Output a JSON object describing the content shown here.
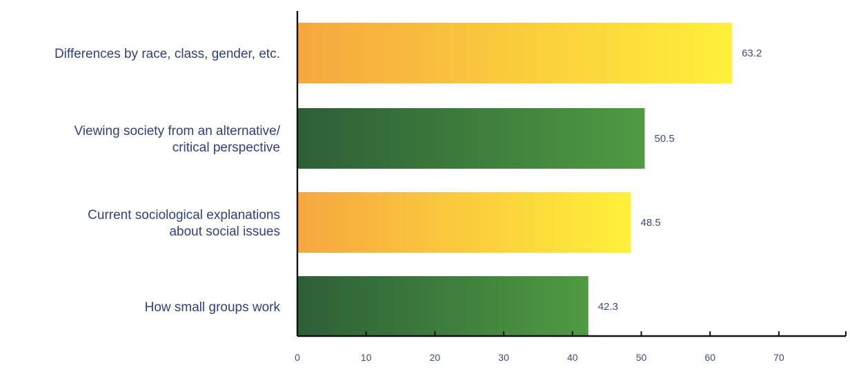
{
  "chart_data": {
    "type": "bar",
    "orientation": "horizontal",
    "title": "",
    "xlabel": "",
    "ylabel": "",
    "categories": [
      [
        "Differences by race, class, gender, etc."
      ],
      [
        "Viewing society from an alternative/",
        "critical perspective"
      ],
      [
        "Current sociological explanations",
        "about social issues"
      ],
      [
        "How small groups work"
      ]
    ],
    "values": [
      63.2,
      50.5,
      48.5,
      42.3
    ],
    "value_labels": [
      "63.2",
      "50.5",
      "48.5",
      "42.3"
    ],
    "bar_styles": [
      "orange-yellow",
      "dark-green",
      "orange-yellow",
      "dark-green"
    ],
    "xlim": [
      0,
      80
    ],
    "xticks": [
      0,
      10,
      20,
      30,
      40,
      50,
      60,
      70
    ],
    "grid": false,
    "legend": "none"
  },
  "colors": {
    "orange_yellow_start": "#f6a73f",
    "orange_yellow_end": "#fff03a",
    "green_start": "#2d5f37",
    "green_end": "#4f9a42",
    "label_text": "#2f3f86",
    "axis": "#111111"
  }
}
